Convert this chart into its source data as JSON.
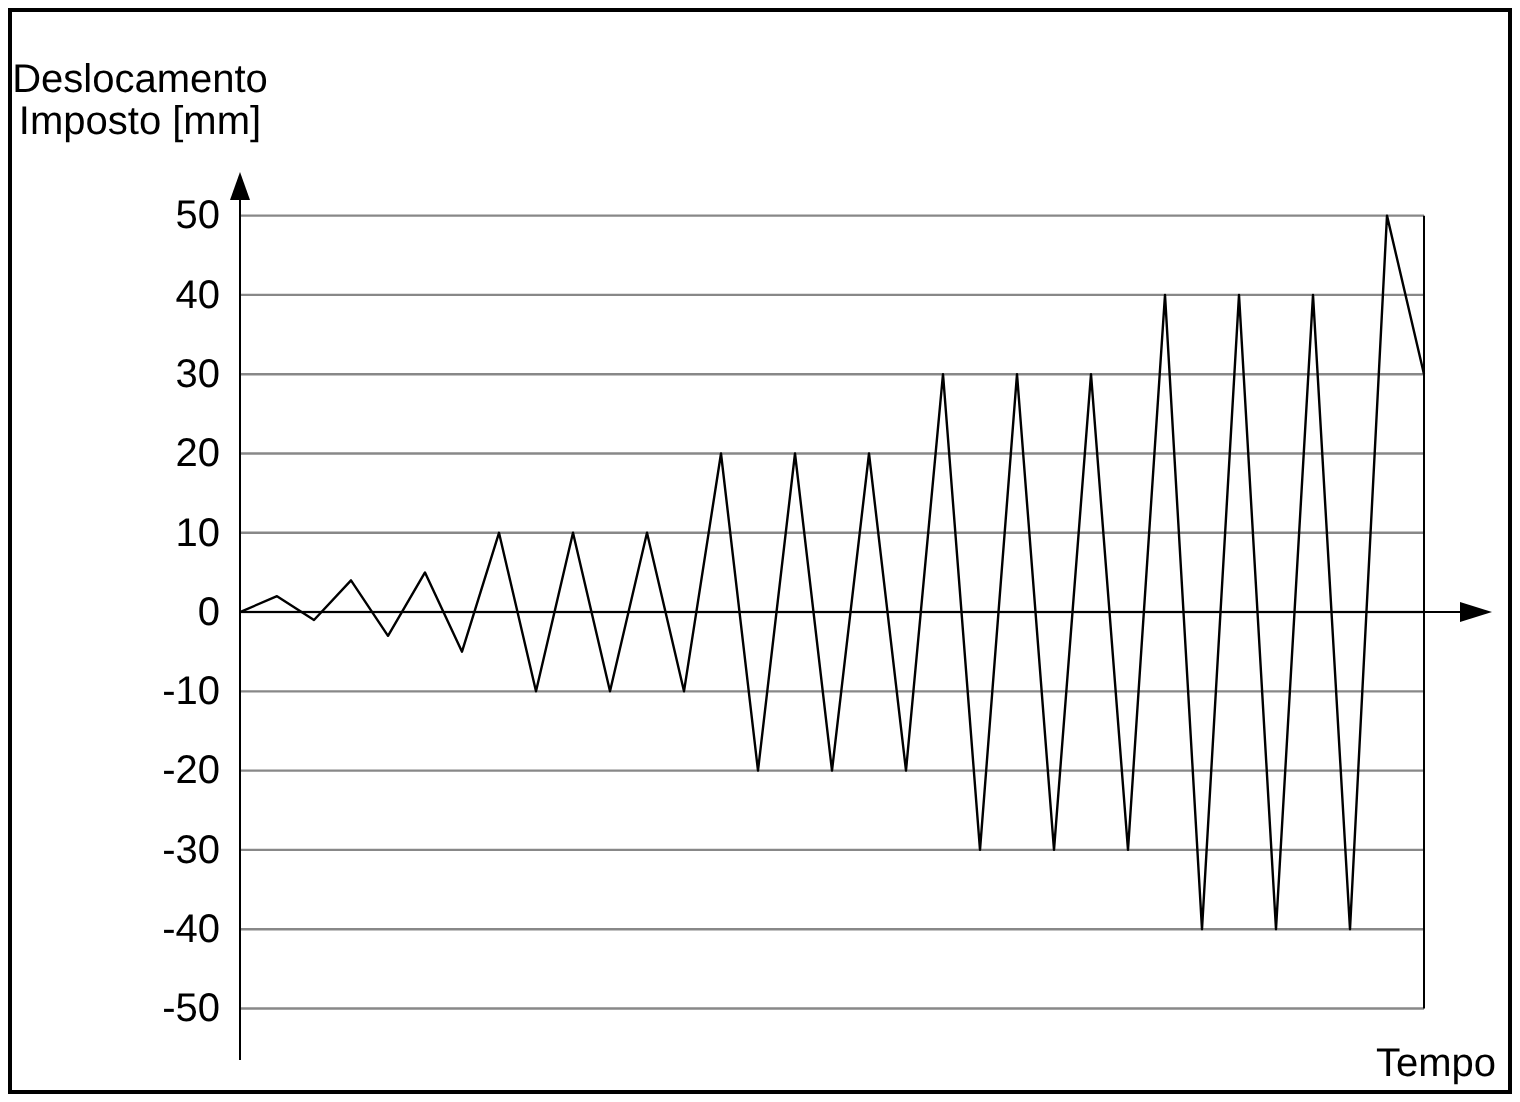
{
  "chart_data": {
    "type": "line",
    "ylabel": "Deslocamento\nImposto [mm]",
    "xlabel": "Tempo",
    "categories": [
      null,
      null,
      null,
      null,
      null,
      null,
      null,
      null,
      null,
      null,
      null,
      null,
      null,
      null,
      null,
      null,
      null,
      null,
      null,
      null,
      null,
      null,
      null,
      null,
      null,
      null,
      null,
      null,
      null,
      null,
      null,
      null,
      null
    ],
    "series": [
      {
        "color": "#000000",
        "values": [
          0,
          2,
          -1,
          4,
          -3,
          5,
          -5,
          10,
          -10,
          10,
          -10,
          10,
          -10,
          20,
          -20,
          20,
          -20,
          20,
          -20,
          30,
          -30,
          30,
          -30,
          30,
          -30,
          40,
          -40,
          40,
          -40,
          40,
          -40,
          50,
          30
        ]
      }
    ],
    "ylim": [
      -56.5,
      55
    ],
    "yticks": [
      -50,
      -40,
      -30,
      -20,
      -10,
      0,
      10,
      20,
      30,
      40,
      50
    ],
    "grid": "y",
    "marker": "none",
    "line_style": "solid",
    "tick_labels": "y"
  }
}
